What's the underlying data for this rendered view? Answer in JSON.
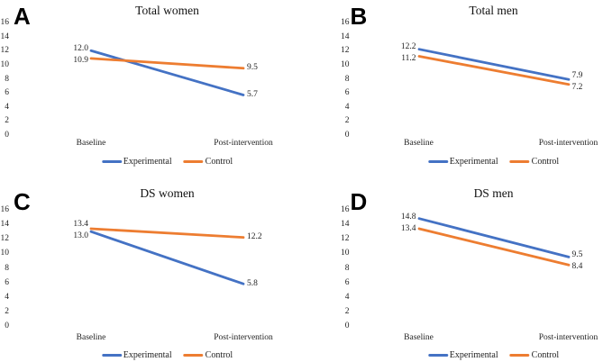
{
  "figure": {
    "background": "#ffffff"
  },
  "colors": {
    "experimental_blue": "#4472C4",
    "control_orange": "#ED7D31"
  },
  "chart_data": [
    {
      "type": "line",
      "panel_label": "A",
      "title": "Total women",
      "x": [
        "Baseline",
        "Post-intervention"
      ],
      "ylim": [
        0,
        16
      ],
      "ytick_step": 2,
      "y_ticks": [
        16,
        14,
        12,
        10,
        8,
        6,
        4,
        2,
        0
      ],
      "grid": false,
      "legend_position": "bottom",
      "series": [
        {
          "name": "Experimental",
          "color": "#4472C4",
          "values": [
            12.0,
            5.7
          ],
          "point_labels": [
            "12.0",
            "5.7"
          ]
        },
        {
          "name": "Control",
          "color": "#ED7D31",
          "values": [
            10.9,
            9.5
          ],
          "point_labels": [
            "10.9",
            "9.5"
          ]
        }
      ]
    },
    {
      "type": "line",
      "panel_label": "B",
      "title": "Total men",
      "x": [
        "Baseline",
        "Post-intervention"
      ],
      "ylim": [
        0,
        16
      ],
      "ytick_step": 2,
      "y_ticks": [
        16,
        14,
        12,
        10,
        8,
        6,
        4,
        2,
        0
      ],
      "grid": false,
      "legend_position": "bottom",
      "series": [
        {
          "name": "Experimental",
          "color": "#4472C4",
          "values": [
            12.2,
            7.9
          ],
          "point_labels": [
            "12.2",
            "7.9"
          ]
        },
        {
          "name": "Control",
          "color": "#ED7D31",
          "values": [
            11.2,
            7.2
          ],
          "point_labels": [
            "11.2",
            "7.2"
          ]
        }
      ]
    },
    {
      "type": "line",
      "panel_label": "C",
      "title": "DS women",
      "x": [
        "Baseline",
        "Post-intervention"
      ],
      "ylim": [
        0,
        16
      ],
      "ytick_step": 2,
      "y_ticks": [
        16,
        14,
        12,
        10,
        8,
        6,
        4,
        2,
        0
      ],
      "grid": false,
      "legend_position": "bottom",
      "series": [
        {
          "name": "Experimental",
          "color": "#4472C4",
          "values": [
            13.0,
            5.8
          ],
          "point_labels": [
            "13.0",
            "5.8"
          ]
        },
        {
          "name": "Control",
          "color": "#ED7D31",
          "values": [
            13.4,
            12.2
          ],
          "point_labels": [
            "13.4",
            "12.2"
          ]
        }
      ]
    },
    {
      "type": "line",
      "panel_label": "D",
      "title": "DS men",
      "x": [
        "Baseline",
        "Post-intervention"
      ],
      "ylim": [
        0,
        16
      ],
      "ytick_step": 2,
      "y_ticks": [
        16,
        14,
        12,
        10,
        8,
        6,
        4,
        2,
        0
      ],
      "grid": false,
      "legend_position": "bottom",
      "series": [
        {
          "name": "Experimental",
          "color": "#4472C4",
          "values": [
            14.8,
            9.5
          ],
          "point_labels": [
            "14.8",
            "9.5"
          ]
        },
        {
          "name": "Control",
          "color": "#ED7D31",
          "values": [
            13.4,
            8.4
          ],
          "point_labels": [
            "13.4",
            "8.4"
          ]
        }
      ]
    }
  ]
}
